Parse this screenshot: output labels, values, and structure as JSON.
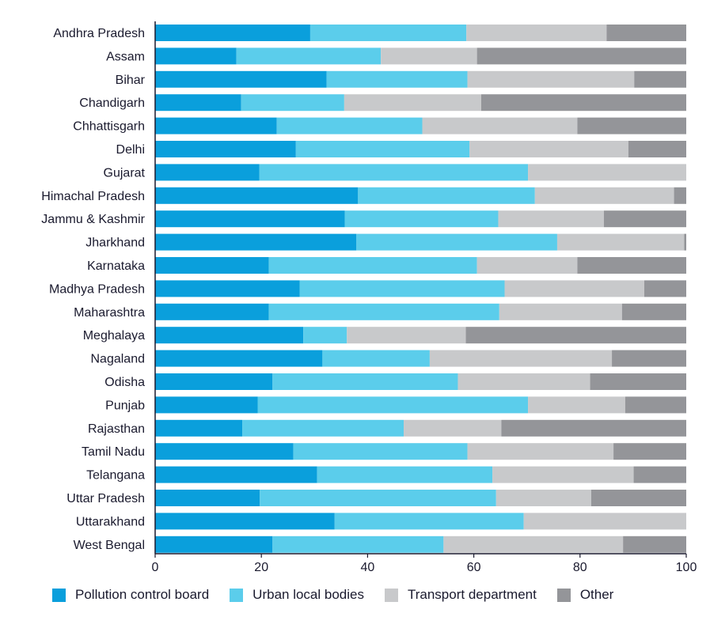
{
  "chart_data": {
    "type": "bar",
    "orientation": "horizontal",
    "stacked": true,
    "categories": [
      "Andhra Pradesh",
      "Assam",
      "Bihar",
      "Chandigarh",
      "Chhattisgarh",
      "Delhi",
      "Gujarat",
      "Himachal Pradesh",
      "Jammu & Kashmir",
      "Jharkhand",
      "Karnataka",
      "Madhya Pradesh",
      "Maharashtra",
      "Meghalaya",
      "Nagaland",
      "Odisha",
      "Punjab",
      "Rajasthan",
      "Tamil Nadu",
      "Telangana",
      "Uttar Pradesh",
      "Uttarakhand",
      "West Bengal"
    ],
    "series": [
      {
        "name": "Pollution control board",
        "color": "#0a9fdc",
        "values": [
          29.2,
          15.3,
          32.3,
          16.2,
          22.9,
          26.5,
          19.6,
          38.2,
          35.7,
          37.9,
          21.4,
          27.2,
          21.4,
          27.9,
          31.5,
          22.1,
          19.3,
          16.4,
          26.0,
          30.5,
          19.7,
          33.8,
          22.1
        ]
      },
      {
        "name": "Urban local bodies",
        "color": "#5bcdeb",
        "values": [
          29.4,
          27.2,
          26.5,
          19.4,
          27.4,
          32.7,
          50.6,
          33.3,
          28.9,
          37.8,
          39.2,
          38.6,
          43.4,
          8.2,
          20.2,
          34.9,
          50.9,
          30.4,
          32.8,
          33.0,
          44.5,
          35.6,
          32.2
        ]
      },
      {
        "name": "Transport department",
        "color": "#c8c9cb",
        "values": [
          26.4,
          18.1,
          31.4,
          25.8,
          29.2,
          29.9,
          29.8,
          26.2,
          19.9,
          23.9,
          18.9,
          26.3,
          23.1,
          22.4,
          34.3,
          24.9,
          18.3,
          18.4,
          27.5,
          26.6,
          17.9,
          30.6,
          33.8
        ]
      },
      {
        "name": "Other",
        "color": "#949599",
        "values": [
          15.0,
          39.4,
          9.8,
          38.6,
          20.5,
          10.9,
          0,
          2.3,
          15.5,
          0.4,
          20.5,
          7.9,
          12.1,
          41.5,
          14.0,
          18.1,
          11.5,
          34.8,
          13.7,
          9.9,
          17.9,
          0,
          11.9
        ]
      }
    ],
    "xlim": [
      0,
      100
    ],
    "xticks": [
      0,
      20,
      40,
      60,
      80,
      100
    ],
    "xlabel": "",
    "ylabel": "",
    "title": "",
    "grid": false,
    "legend_position": "bottom"
  }
}
